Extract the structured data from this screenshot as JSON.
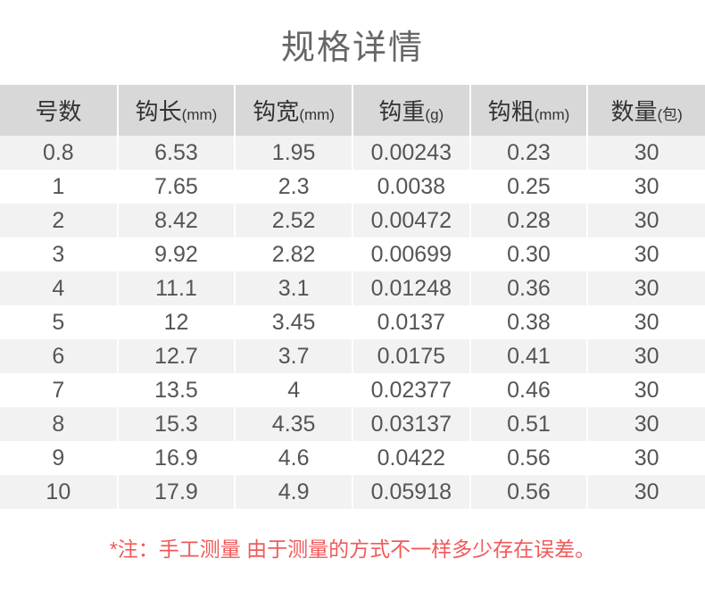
{
  "title": "规格详情",
  "table": {
    "type": "table",
    "background_odd": "#f2f2f2",
    "background_even": "#ffffff",
    "header_bg": "#d8d8d8",
    "text_color": "#555555",
    "header_color": "#333333",
    "columns": [
      {
        "label": "号数",
        "unit": ""
      },
      {
        "label": "钩长",
        "unit": "(mm)"
      },
      {
        "label": "钩宽",
        "unit": "(mm)"
      },
      {
        "label": "钩重",
        "unit": "(g)"
      },
      {
        "label": "钩粗",
        "unit": "(mm)"
      },
      {
        "label": "数量",
        "unit": "(包)"
      }
    ],
    "rows": [
      [
        "0.8",
        "6.53",
        "1.95",
        "0.00243",
        "0.23",
        "30"
      ],
      [
        "1",
        "7.65",
        "2.3",
        "0.0038",
        "0.25",
        "30"
      ],
      [
        "2",
        "8.42",
        "2.52",
        "0.00472",
        "0.28",
        "30"
      ],
      [
        "3",
        "9.92",
        "2.82",
        "0.00699",
        "0.30",
        "30"
      ],
      [
        "4",
        "11.1",
        "3.1",
        "0.01248",
        "0.36",
        "30"
      ],
      [
        "5",
        "12",
        "3.45",
        "0.0137",
        "0.38",
        "30"
      ],
      [
        "6",
        "12.7",
        "3.7",
        "0.0175",
        "0.41",
        "30"
      ],
      [
        "7",
        "13.5",
        "4",
        "0.02377",
        "0.46",
        "30"
      ],
      [
        "8",
        "15.3",
        "4.35",
        "0.03137",
        "0.51",
        "30"
      ],
      [
        "9",
        "16.9",
        "4.6",
        "0.0422",
        "0.56",
        "30"
      ],
      [
        "10",
        "17.9",
        "4.9",
        "0.05918",
        "0.56",
        "30"
      ]
    ]
  },
  "note": "*注：手工测量 由于测量的方式不一样多少存在误差。",
  "note_color": "#f05a5a"
}
